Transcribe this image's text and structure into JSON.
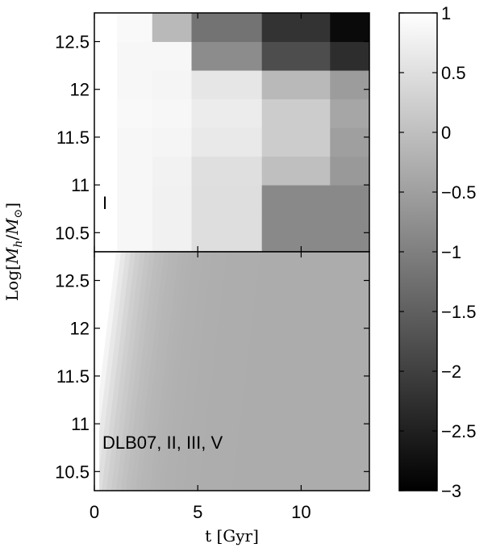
{
  "chart_data": [
    {
      "type": "heatmap",
      "panel": "top",
      "annotation": "I",
      "x_edges": [
        0,
        1.1,
        2.8,
        4.7,
        8.1,
        11.4,
        13.3
      ],
      "y_edges": [
        10.3,
        10.7,
        11.0,
        11.3,
        11.6,
        11.9,
        12.2,
        12.5,
        12.8
      ],
      "values_rows_bottom_to_top": [
        [
          1.0,
          0.88,
          0.78,
          0.48,
          -0.85,
          -0.85
        ],
        [
          1.0,
          0.88,
          0.78,
          0.48,
          -0.85,
          -0.85
        ],
        [
          1.0,
          0.87,
          0.8,
          0.5,
          0.0,
          -0.6
        ],
        [
          1.0,
          0.88,
          0.85,
          0.65,
          0.2,
          -0.5
        ],
        [
          1.0,
          0.9,
          0.88,
          0.7,
          0.2,
          -0.4
        ],
        [
          1.0,
          0.88,
          0.85,
          0.6,
          -0.1,
          -0.55
        ],
        [
          1.0,
          0.88,
          0.87,
          -0.8,
          -1.8,
          -2.3
        ],
        [
          1.0,
          0.9,
          -0.1,
          -1.2,
          -2.2,
          -2.85
        ]
      ]
    },
    {
      "type": "heatmap",
      "panel": "bottom",
      "annotation": "DLB07, II, III, V",
      "description_of_field": "smooth gradient: ~1 at t=0 decreasing to about -0.25 to -0.35 by t~13; contours slope up-right",
      "x_range": [
        0,
        13.3
      ],
      "y_range": [
        10.3,
        12.8
      ],
      "value_at_t0": 1.0,
      "value_far": -0.3
    }
  ],
  "axes": {
    "x_ticks": [
      "0",
      "5",
      "10"
    ],
    "x_tick_values": [
      0,
      5,
      10
    ],
    "y_ticks": [
      "10.5",
      "11",
      "11.5",
      "12",
      "12.5"
    ],
    "y_tick_values": [
      10.5,
      11,
      11.5,
      12,
      12.5
    ],
    "xlabel": "t [Gyr]",
    "ylabel": "Log[M_h/M_⊙]",
    "ylabel_parts": {
      "log": "Log[",
      "M": "M",
      "h": "h",
      "slash": "/",
      "M2": "M",
      "sun": "⊙",
      "close": "]"
    }
  },
  "colorbar": {
    "range": [
      -3,
      1
    ],
    "ticks": [
      "1",
      "0.5",
      "0",
      "−0.5",
      "−1",
      "−1.5",
      "−2",
      "−2.5",
      "−3"
    ],
    "tick_values": [
      1,
      0.5,
      0,
      -0.5,
      -1,
      -1.5,
      -2,
      -2.5,
      -3
    ],
    "colormap": "gray"
  }
}
